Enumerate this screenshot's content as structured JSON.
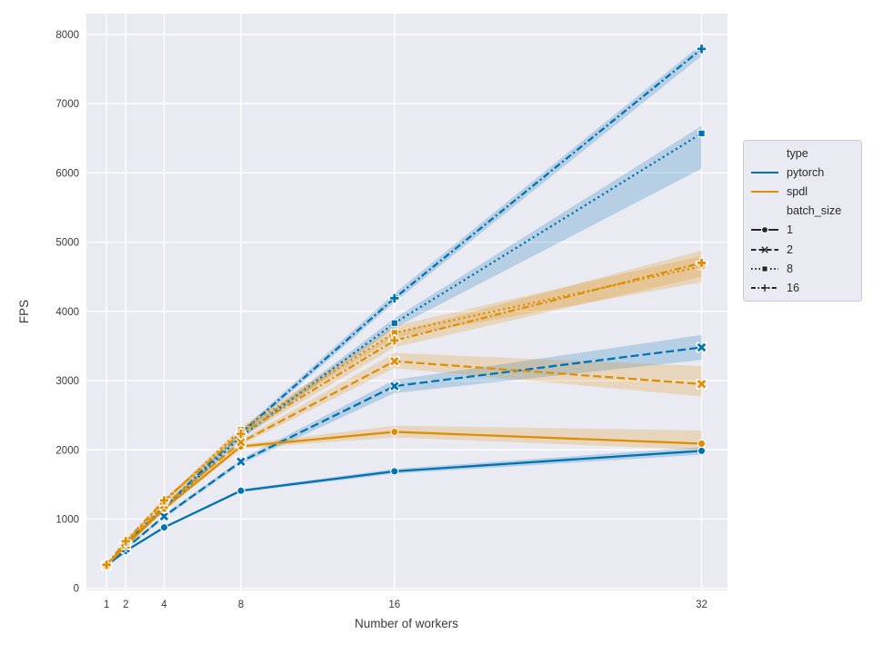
{
  "chart_data": {
    "type": "line",
    "xlabel": "Number of workers",
    "ylabel": "FPS",
    "x": [
      1,
      2,
      4,
      8,
      16,
      32
    ],
    "xticks": [
      1,
      2,
      4,
      8,
      16,
      32
    ],
    "yticks": [
      0,
      1000,
      2000,
      3000,
      4000,
      5000,
      6000,
      7000,
      8000
    ],
    "xlim": [
      0,
      33.3
    ],
    "ylim": [
      0,
      8300
    ],
    "grid": true,
    "style": {
      "plot_bg": "#eaeaf2",
      "grid_color": "#ffffff",
      "text_color": "#3a3a3a",
      "pytorch_color": "#0173b2",
      "spdl_color": "#de8f05",
      "band_opacity": "0.22"
    },
    "series": [
      {
        "name": "pytorch-batch1",
        "group": "pytorch",
        "batch_size": 1,
        "color": "#0173b2",
        "linestyle": "solid",
        "marker": "circle",
        "values": [
          330,
          540,
          880,
          1410,
          1690,
          1985
        ],
        "band_lo": [
          322,
          528,
          865,
          1390,
          1655,
          1930
        ],
        "band_hi": [
          338,
          552,
          895,
          1430,
          1725,
          2040
        ]
      },
      {
        "name": "pytorch-batch2",
        "group": "pytorch",
        "batch_size": 2,
        "color": "#0173b2",
        "linestyle": "dashed",
        "marker": "x",
        "values": [
          330,
          575,
          1040,
          1830,
          2920,
          3480
        ],
        "band_lo": [
          322,
          560,
          1015,
          1795,
          2820,
          3300
        ],
        "band_hi": [
          338,
          590,
          1065,
          1865,
          3010,
          3660
        ]
      },
      {
        "name": "pytorch-batch8",
        "group": "pytorch",
        "batch_size": 8,
        "color": "#0173b2",
        "linestyle": "dotted",
        "marker": "square",
        "values": [
          332,
          630,
          1140,
          2190,
          3830,
          6570
        ],
        "band_lo": [
          324,
          615,
          1115,
          2150,
          3760,
          6060
        ],
        "band_hi": [
          340,
          645,
          1165,
          2230,
          3900,
          6680
        ]
      },
      {
        "name": "pytorch-batch16",
        "group": "pytorch",
        "batch_size": 16,
        "color": "#0173b2",
        "linestyle": "dashdot",
        "marker": "plus",
        "values": [
          332,
          650,
          1170,
          2240,
          4190,
          7790
        ],
        "band_lo": [
          324,
          635,
          1145,
          2200,
          4130,
          7690
        ],
        "band_hi": [
          340,
          665,
          1195,
          2280,
          4260,
          7860
        ]
      },
      {
        "name": "spdl-batch1",
        "group": "spdl",
        "batch_size": 1,
        "color": "#de8f05",
        "linestyle": "solid",
        "marker": "circle",
        "values": [
          330,
          610,
          1150,
          2050,
          2260,
          2090
        ],
        "band_lo": [
          322,
          595,
          1125,
          2020,
          2180,
          2000
        ],
        "band_hi": [
          338,
          625,
          1175,
          2080,
          2350,
          2280
        ]
      },
      {
        "name": "spdl-batch2",
        "group": "spdl",
        "batch_size": 2,
        "color": "#de8f05",
        "linestyle": "dashed",
        "marker": "x",
        "values": [
          330,
          630,
          1200,
          2110,
          3280,
          2950
        ],
        "band_lo": [
          322,
          615,
          1175,
          2070,
          3180,
          2770
        ],
        "band_hi": [
          338,
          645,
          1225,
          2150,
          3400,
          3210
        ]
      },
      {
        "name": "spdl-batch8",
        "group": "spdl",
        "batch_size": 8,
        "color": "#de8f05",
        "linestyle": "dotted",
        "marker": "square",
        "values": [
          335,
          660,
          1250,
          2290,
          3690,
          4650
        ],
        "band_lo": [
          327,
          645,
          1225,
          2250,
          3620,
          4420
        ],
        "band_hi": [
          343,
          675,
          1275,
          2330,
          3790,
          4800
        ]
      },
      {
        "name": "spdl-batch16",
        "group": "spdl",
        "batch_size": 16,
        "color": "#de8f05",
        "linestyle": "dashdot",
        "marker": "plus",
        "values": [
          340,
          680,
          1270,
          2230,
          3580,
          4700
        ],
        "band_lo": [
          330,
          663,
          1243,
          2180,
          3480,
          4500
        ],
        "band_hi": [
          350,
          697,
          1297,
          2280,
          3690,
          4880
        ]
      }
    ],
    "legend": {
      "position": "right",
      "type_title": "type",
      "type_entries": [
        {
          "label": "pytorch",
          "color": "#0173b2",
          "linestyle": "solid"
        },
        {
          "label": "spdl",
          "color": "#de8f05",
          "linestyle": "solid"
        }
      ],
      "batch_title": "batch_size",
      "batch_entries": [
        {
          "label": "1",
          "linestyle": "solid",
          "marker": "circle"
        },
        {
          "label": "2",
          "linestyle": "dashed",
          "marker": "x"
        },
        {
          "label": "8",
          "linestyle": "dotted",
          "marker": "square"
        },
        {
          "label": "16",
          "linestyle": "dashdot",
          "marker": "plus"
        }
      ],
      "marker_color": "#262626"
    }
  }
}
